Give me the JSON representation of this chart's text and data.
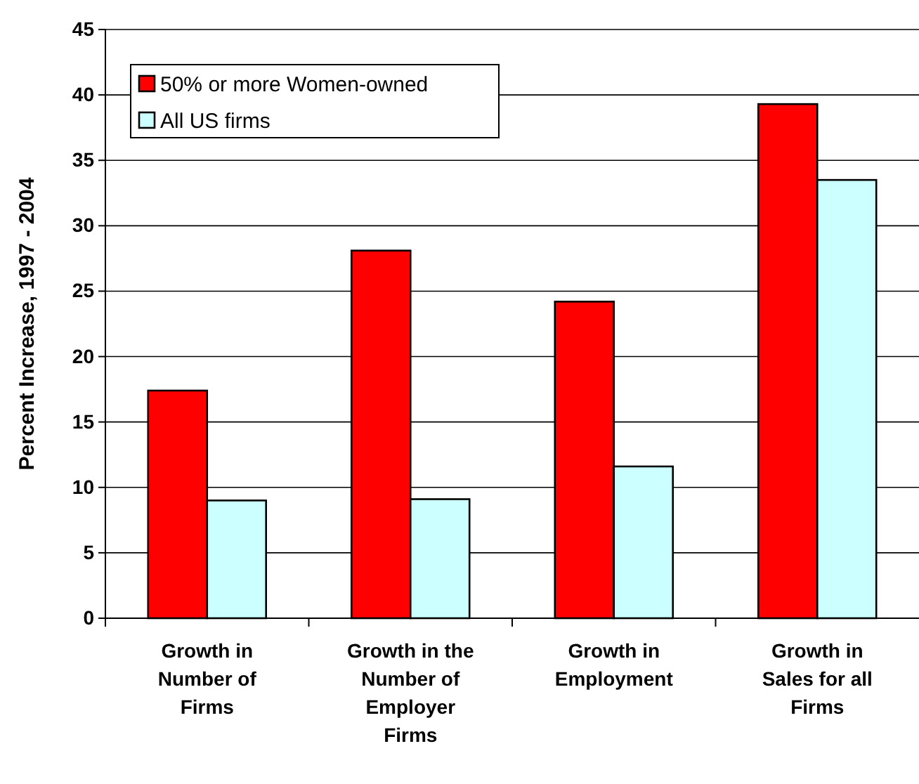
{
  "chart_data": {
    "type": "bar",
    "ylabel": "Percent Increase, 1997 - 2004",
    "categories": [
      "Growth in Number of Firms",
      "Growth in the Number of Employer Firms",
      "Growth in Employment",
      "Growth in Sales for all Firms"
    ],
    "series": [
      {
        "name": "50% or more Women-owned",
        "color": "#ff0000",
        "values": [
          17.4,
          28.1,
          24.2,
          39.3
        ]
      },
      {
        "name": "All US firms",
        "color": "#ccffff",
        "values": [
          9.0,
          9.1,
          11.6,
          33.5
        ]
      }
    ],
    "ylim": [
      0,
      45
    ],
    "yticks": [
      0,
      5,
      10,
      15,
      20,
      25,
      30,
      35,
      40,
      45
    ],
    "grid": "y",
    "legend": "top left"
  }
}
